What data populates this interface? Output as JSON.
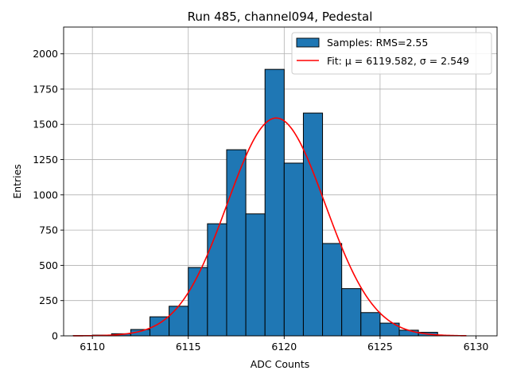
{
  "chart_data": {
    "type": "bar",
    "title": "Run 485, channel094, Pedestal",
    "xlabel": "ADC Counts",
    "ylabel": "Entries",
    "xlim": [
      6108.5,
      6131.1
    ],
    "ylim": [
      0,
      2190
    ],
    "xticks": [
      6110,
      6115,
      6120,
      6125,
      6130
    ],
    "yticks": [
      0,
      250,
      500,
      750,
      1000,
      1250,
      1500,
      1750,
      2000
    ],
    "grid": true,
    "legend_position": "top-right",
    "bin_width": 1,
    "bins": [
      {
        "left": 6109,
        "count": 2
      },
      {
        "left": 6110,
        "count": 5
      },
      {
        "left": 6111,
        "count": 15
      },
      {
        "left": 6112,
        "count": 45
      },
      {
        "left": 6113,
        "count": 135
      },
      {
        "left": 6114,
        "count": 210
      },
      {
        "left": 6115,
        "count": 485
      },
      {
        "left": 6116,
        "count": 795
      },
      {
        "left": 6117,
        "count": 1320
      },
      {
        "left": 6118,
        "count": 865
      },
      {
        "left": 6119,
        "count": 1890
      },
      {
        "left": 6120,
        "count": 1225
      },
      {
        "left": 6121,
        "count": 1580
      },
      {
        "left": 6122,
        "count": 655
      },
      {
        "left": 6123,
        "count": 335
      },
      {
        "left": 6124,
        "count": 165
      },
      {
        "left": 6125,
        "count": 90
      },
      {
        "left": 6126,
        "count": 40
      },
      {
        "left": 6127,
        "count": 25
      }
    ],
    "fit": {
      "mu": 6119.582,
      "sigma": 2.549,
      "amplitude": 1545,
      "x_range": [
        6109,
        6129.5
      ]
    },
    "series": [
      {
        "name": "Samples: RMS=2.55",
        "kind": "histogram",
        "color": "#1f77b4",
        "edge_color": "#000000"
      },
      {
        "name": "Fit: μ = 6119.582, σ = 2.549",
        "kind": "line",
        "color": "#ff0000"
      }
    ]
  }
}
